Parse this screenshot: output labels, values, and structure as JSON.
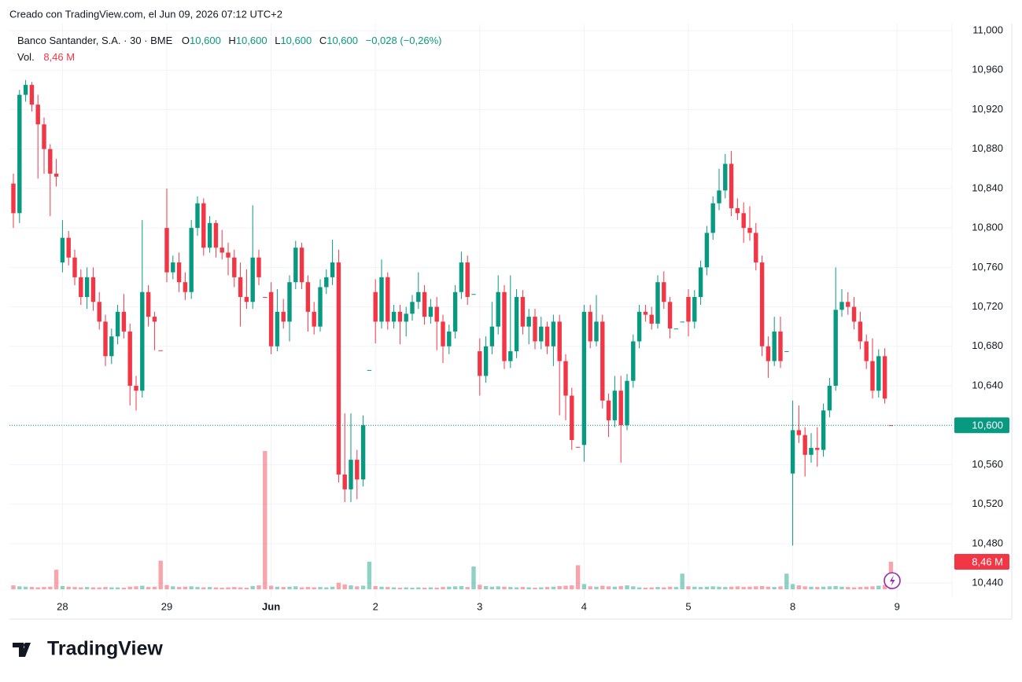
{
  "created": "Creado con TradingView.com, el Jun 09, 2026 07:12 UTC+2",
  "footer": {
    "brand": "TradingView"
  },
  "chart_data": {
    "type": "candlestick",
    "title": "Banco Santander, S.A. · 30 · BME",
    "ohlc": [
      {
        "key": "O",
        "text": "10,600"
      },
      {
        "key": "H",
        "text": "10,600"
      },
      {
        "key": "L",
        "text": "10,600"
      },
      {
        "key": "C",
        "text": "10,600"
      }
    ],
    "change": "−0,028 (−0,26%)",
    "volume_legend": "Vol.",
    "last_volume": {
      "value": 8.46,
      "label": "8,46 M"
    },
    "last_price": {
      "value": 10.6,
      "label": "10,600"
    },
    "up_color": "#089981",
    "down_color": "#f23645",
    "grid": true,
    "xlim": [
      -0.641,
      152.95
    ],
    "xticks": [
      {
        "value": 8,
        "label": "28"
      },
      {
        "value": 25,
        "label": "29"
      },
      {
        "value": 42,
        "label": "Jun"
      },
      {
        "value": 59,
        "label": "2"
      },
      {
        "value": 76,
        "label": "3"
      },
      {
        "value": 93,
        "label": "4"
      },
      {
        "value": 110,
        "label": "5"
      },
      {
        "value": 127,
        "label": "8"
      },
      {
        "value": 144,
        "label": "9"
      }
    ],
    "ylim": [
      10.4257,
      11.0072
    ],
    "yticks": [
      {
        "value": 10.44,
        "label": "10,440"
      },
      {
        "value": 10.48,
        "label": "10,480"
      },
      {
        "value": 10.52,
        "label": "10,520"
      },
      {
        "value": 10.56,
        "label": "10,560"
      },
      {
        "value": 10.6,
        "label": "10,600"
      },
      {
        "value": 10.64,
        "label": "10,640"
      },
      {
        "value": 10.68,
        "label": "10,680"
      },
      {
        "value": 10.72,
        "label": "10,720"
      },
      {
        "value": 10.76,
        "label": "10,760"
      },
      {
        "value": 10.8,
        "label": "10,800"
      },
      {
        "value": 10.84,
        "label": "10,840"
      },
      {
        "value": 10.88,
        "label": "10,880"
      },
      {
        "value": 10.92,
        "label": "10,920"
      },
      {
        "value": 10.96,
        "label": "10,960"
      },
      {
        "value": 11.0,
        "label": "11,000"
      }
    ],
    "open": [
      10.845,
      10.815,
      10.935,
      10.945,
      10.925,
      10.905,
      10.88,
      10.855,
      10.765,
      10.79,
      10.77,
      10.75,
      10.73,
      10.75,
      10.725,
      10.705,
      10.67,
      10.69,
      10.715,
      10.695,
      10.64,
      10.635,
      10.735,
      10.71,
      10.676,
      10.8,
      10.755,
      10.765,
      10.745,
      10.735,
      10.8,
      10.825,
      10.78,
      10.805,
      10.78,
      10.775,
      10.77,
      10.75,
      10.73,
      10.725,
      10.77,
      10.73,
      10.735,
      10.68,
      10.715,
      10.705,
      10.745,
      10.78,
      10.745,
      10.715,
      10.7,
      10.74,
      10.75,
      10.765,
      10.55,
      10.535,
      10.565,
      10.545,
      10.656,
      10.735,
      10.705,
      10.75,
      10.705,
      10.715,
      10.705,
      10.713,
      10.725,
      10.735,
      10.71,
      10.72,
      10.705,
      10.68,
      10.695,
      10.735,
      10.765,
      10.733,
      10.675,
      10.65,
      10.68,
      10.7,
      10.735,
      10.665,
      10.675,
      10.73,
      10.7,
      10.71,
      10.685,
      10.7,
      10.68,
      10.705,
      10.665,
      10.63,
      10.578,
      10.58,
      10.715,
      10.685,
      10.705,
      10.625,
      10.605,
      10.635,
      10.6,
      10.645,
      10.685,
      10.715,
      10.712,
      10.703,
      10.745,
      10.725,
      10.698,
      10.705,
      10.73,
      10.705,
      10.73,
      10.76,
      10.795,
      10.825,
      10.838,
      10.865,
      10.82,
      10.815,
      10.8,
      10.795,
      10.765,
      10.68,
      10.665,
      10.695,
      10.675,
      10.551,
      10.595,
      10.59,
      10.57,
      10.577,
      10.575,
      10.615,
      10.64,
      10.717,
      10.725,
      10.72,
      10.705,
      10.685,
      10.665,
      10.635,
      10.67,
      10.6
    ],
    "high": [
      10.855,
      10.94,
      10.95,
      10.948,
      10.935,
      10.912,
      10.885,
      10.87,
      10.808,
      10.797,
      10.778,
      10.758,
      10.76,
      10.76,
      10.735,
      10.712,
      10.698,
      10.722,
      10.733,
      10.703,
      10.65,
      10.808,
      10.742,
      10.715,
      10.676,
      10.84,
      10.772,
      10.775,
      10.755,
      10.808,
      10.832,
      10.83,
      10.812,
      10.808,
      10.798,
      10.785,
      10.778,
      10.765,
      10.758,
      10.823,
      10.778,
      10.73,
      10.745,
      10.738,
      10.728,
      10.752,
      10.787,
      10.785,
      10.752,
      10.725,
      10.748,
      10.758,
      10.788,
      10.778,
      10.612,
      10.612,
      10.575,
      10.61,
      10.656,
      10.748,
      10.768,
      10.755,
      10.722,
      10.722,
      10.72,
      10.732,
      10.755,
      10.742,
      10.728,
      10.73,
      10.712,
      10.702,
      10.742,
      10.776,
      10.772,
      10.733,
      10.688,
      10.69,
      10.725,
      10.752,
      10.742,
      10.752,
      10.738,
      10.737,
      10.718,
      10.718,
      10.71,
      10.705,
      10.712,
      10.712,
      10.672,
      10.638,
      10.578,
      10.722,
      10.722,
      10.732,
      10.712,
      10.632,
      10.65,
      10.65,
      10.652,
      10.692,
      10.722,
      10.722,
      10.72,
      10.752,
      10.756,
      10.73,
      10.698,
      10.705,
      10.738,
      10.737,
      10.767,
      10.802,
      10.832,
      10.86,
      10.875,
      10.878,
      10.83,
      10.826,
      10.822,
      10.805,
      10.772,
      10.69,
      10.71,
      10.71,
      10.675,
      10.625,
      10.62,
      10.598,
      10.592,
      10.598,
      10.622,
      10.648,
      10.76,
      10.738,
      10.735,
      10.73,
      10.715,
      10.692,
      10.688,
      10.677,
      10.678,
      10.6
    ],
    "low": [
      10.8,
      10.805,
      10.928,
      10.918,
      10.85,
      10.855,
      10.812,
      10.842,
      10.755,
      10.762,
      10.742,
      10.722,
      10.718,
      10.716,
      10.697,
      10.66,
      10.662,
      10.682,
      10.688,
      10.62,
      10.615,
      10.628,
      10.7,
      10.676,
      10.676,
      10.745,
      10.748,
      10.735,
      10.727,
      10.728,
      10.792,
      10.772,
      10.775,
      10.77,
      10.768,
      10.752,
      10.74,
      10.7,
      10.718,
      10.718,
      10.742,
      10.73,
      10.672,
      10.675,
      10.698,
      10.685,
      10.738,
      10.738,
      10.695,
      10.692,
      10.695,
      10.733,
      10.742,
      10.542,
      10.522,
      10.522,
      10.525,
      10.538,
      10.656,
      10.683,
      10.698,
      10.697,
      10.698,
      10.682,
      10.69,
      10.706,
      10.718,
      10.702,
      10.703,
      10.676,
      10.663,
      10.672,
      10.688,
      10.728,
      10.722,
      10.733,
      10.63,
      10.643,
      10.672,
      10.692,
      10.657,
      10.658,
      10.668,
      10.692,
      10.682,
      10.677,
      10.677,
      10.672,
      10.66,
      10.61,
      10.605,
      10.575,
      10.578,
      10.563,
      10.678,
      10.68,
      10.617,
      10.588,
      10.598,
      10.562,
      10.595,
      10.638,
      10.678,
      10.705,
      10.697,
      10.698,
      10.718,
      10.688,
      10.698,
      10.705,
      10.69,
      10.698,
      10.722,
      10.752,
      10.788,
      10.818,
      10.83,
      10.812,
      10.808,
      10.785,
      10.787,
      10.757,
      10.67,
      10.648,
      10.66,
      10.658,
      10.675,
      10.478,
      10.582,
      10.548,
      10.562,
      10.558,
      10.568,
      10.608,
      10.635,
      10.71,
      10.712,
      10.697,
      10.677,
      10.657,
      10.627,
      10.628,
      10.622,
      10.6
    ],
    "close": [
      10.815,
      10.935,
      10.945,
      10.925,
      10.905,
      10.88,
      10.855,
      10.852,
      10.79,
      10.77,
      10.75,
      10.73,
      10.75,
      10.725,
      10.705,
      10.67,
      10.69,
      10.715,
      10.695,
      10.64,
      10.635,
      10.735,
      10.71,
      10.705,
      10.676,
      10.755,
      10.765,
      10.745,
      10.735,
      10.8,
      10.825,
      10.78,
      10.805,
      10.78,
      10.775,
      10.77,
      10.75,
      10.73,
      10.725,
      10.77,
      10.75,
      10.73,
      10.68,
      10.715,
      10.705,
      10.745,
      10.78,
      10.745,
      10.715,
      10.7,
      10.74,
      10.75,
      10.765,
      10.55,
      10.535,
      10.565,
      10.545,
      10.6,
      10.656,
      10.705,
      10.75,
      10.705,
      10.715,
      10.705,
      10.713,
      10.725,
      10.735,
      10.71,
      10.72,
      10.705,
      10.68,
      10.695,
      10.735,
      10.765,
      10.73,
      10.733,
      10.65,
      10.68,
      10.7,
      10.735,
      10.665,
      10.675,
      10.73,
      10.7,
      10.71,
      10.685,
      10.7,
      10.68,
      10.705,
      10.665,
      10.63,
      10.585,
      10.578,
      10.715,
      10.685,
      10.705,
      10.625,
      10.605,
      10.635,
      10.6,
      10.645,
      10.685,
      10.715,
      10.712,
      10.703,
      10.745,
      10.725,
      10.698,
      10.698,
      10.705,
      10.705,
      10.73,
      10.76,
      10.795,
      10.825,
      10.838,
      10.865,
      10.82,
      10.815,
      10.8,
      10.795,
      10.765,
      10.68,
      10.665,
      10.695,
      10.665,
      10.675,
      10.595,
      10.59,
      10.57,
      10.577,
      10.575,
      10.615,
      10.64,
      10.717,
      10.725,
      10.72,
      10.705,
      10.685,
      10.665,
      10.635,
      10.67,
      10.627,
      10.6
    ],
    "volume": [
      1.2,
      0.9,
      0.8,
      0.7,
      0.6,
      0.7,
      0.8,
      6.0,
      1.0,
      0.8,
      0.7,
      0.6,
      0.7,
      0.6,
      0.6,
      0.7,
      0.6,
      0.6,
      0.5,
      0.8,
      0.9,
      1.1,
      0.7,
      0.8,
      8.8,
      1.3,
      0.9,
      0.7,
      0.8,
      0.9,
      0.7,
      0.6,
      0.7,
      0.6,
      0.5,
      0.6,
      0.7,
      0.6,
      0.5,
      1.0,
      1.2,
      42.5,
      1.1,
      0.8,
      0.7,
      0.8,
      0.9,
      0.6,
      0.7,
      0.6,
      0.7,
      0.6,
      0.8,
      2.0,
      1.5,
      1.2,
      0.9,
      1.1,
      8.5,
      1.0,
      0.8,
      0.7,
      0.6,
      0.5,
      0.6,
      0.5,
      0.6,
      0.5,
      0.6,
      0.5,
      0.7,
      0.8,
      0.9,
      1.0,
      0.7,
      7.0,
      1.4,
      1.0,
      0.8,
      0.9,
      0.8,
      0.7,
      0.6,
      0.7,
      0.6,
      0.5,
      0.6,
      0.7,
      0.8,
      1.0,
      1.1,
      1.2,
      7.4,
      1.6,
      0.9,
      0.8,
      1.1,
      0.9,
      0.8,
      1.0,
      1.2,
      0.9,
      0.6,
      0.5,
      0.6,
      0.7,
      0.6,
      0.8,
      0.7,
      4.8,
      0.9,
      0.8,
      0.7,
      0.8,
      0.9,
      0.8,
      0.7,
      0.8,
      0.9,
      0.7,
      0.8,
      0.9,
      1.0,
      0.8,
      0.7,
      0.9,
      4.8,
      1.6,
      1.2,
      0.9,
      0.8,
      0.7,
      0.8,
      0.9,
      1.0,
      0.8,
      0.7,
      0.6,
      0.7,
      0.8,
      0.9,
      1.1,
      1.3,
      8.46
    ]
  }
}
